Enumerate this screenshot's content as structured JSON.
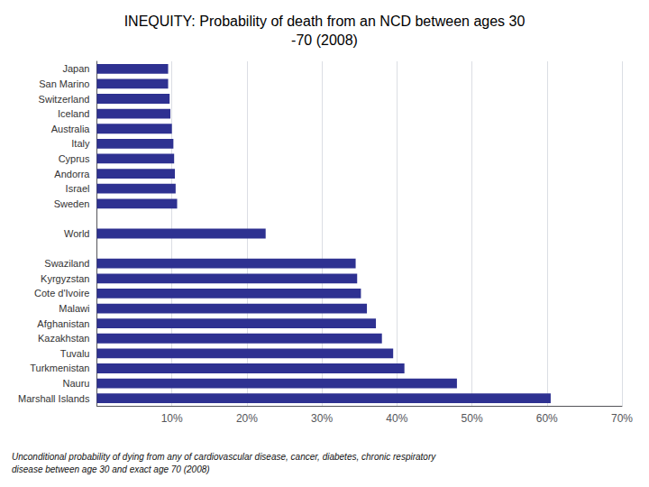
{
  "chart_data": {
    "type": "bar",
    "orientation": "horizontal",
    "title": "INEQUITY: Probability of death from an NCD between ages 30\n-70 (2008)",
    "subtitle": "Unconditional probability of dying from any of cardiovascular disease, cancer, diabetes, chronic respiratory\ndisease between age 30 and exact age 70 (2008)",
    "categories": [
      "Japan",
      "San Marino",
      "Switzerland",
      "Iceland",
      "Australia",
      "Italy",
      "Cyprus",
      "Andorra",
      "Israel",
      "Sweden",
      null,
      "World",
      null,
      "Swaziland",
      "Kyrgyzstan",
      "Cote d'Ivoire",
      "Malawi",
      "Afghanistan",
      "Kazakhstan",
      "Tuvalu",
      "Turkmenistan",
      "Nauru",
      "Marshall Islands"
    ],
    "values": [
      9.5,
      9.5,
      9.7,
      9.8,
      10.0,
      10.2,
      10.3,
      10.4,
      10.5,
      10.7,
      null,
      22.5,
      null,
      34.5,
      34.7,
      35.2,
      36.0,
      37.2,
      38.0,
      39.5,
      41.0,
      48.0,
      60.5
    ],
    "color": "#2e3191",
    "xlim": [
      0,
      70
    ],
    "xticks": [
      {
        "value": 10,
        "label": "10%"
      },
      {
        "value": 20,
        "label": "20%"
      },
      {
        "value": 30,
        "label": "30%"
      },
      {
        "value": 40,
        "label": "40%"
      },
      {
        "value": 50,
        "label": "50%"
      },
      {
        "value": 60,
        "label": "60%"
      },
      {
        "value": 70,
        "label": "70%"
      }
    ],
    "grid": true
  }
}
